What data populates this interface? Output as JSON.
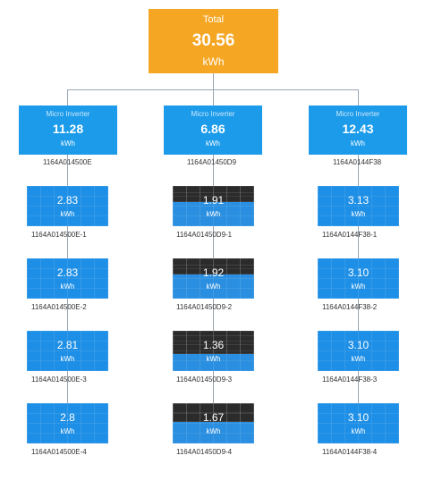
{
  "total": {
    "title": "Total",
    "value": "30.56",
    "unit": "kWh"
  },
  "inverters": [
    {
      "label": "Micro Inverter",
      "value": "11.28",
      "unit": "kWh",
      "serial": "1164A014500E",
      "panels": [
        {
          "value": "2.83",
          "unit": "kWh",
          "serial": "1164A014500E-1",
          "fill": 1.0
        },
        {
          "value": "2.83",
          "unit": "kWh",
          "serial": "1164A014500E-2",
          "fill": 1.0
        },
        {
          "value": "2.81",
          "unit": "kWh",
          "serial": "1164A014500E-3",
          "fill": 1.0
        },
        {
          "value": "2.8",
          "unit": "kWh",
          "serial": "1164A014500E-4",
          "fill": 1.0
        }
      ]
    },
    {
      "label": "Micro Inverter",
      "value": "6.86",
      "unit": "kWh",
      "serial": "1164A01450D9",
      "panels": [
        {
          "value": "1.91",
          "unit": "kWh",
          "serial": "1164A01450D9-1",
          "fill": 0.61
        },
        {
          "value": "1.92",
          "unit": "kWh",
          "serial": "1164A01450D9-2",
          "fill": 0.61
        },
        {
          "value": "1.36",
          "unit": "kWh",
          "serial": "1164A01450D9-3",
          "fill": 0.43
        },
        {
          "value": "1.67",
          "unit": "kWh",
          "serial": "1164A01450D9-4",
          "fill": 0.53
        }
      ]
    },
    {
      "label": "Micro Inverter",
      "value": "12.43",
      "unit": "kWh",
      "serial": "1164A0144F38",
      "panels": [
        {
          "value": "3.13",
          "unit": "kWh",
          "serial": "1164A0144F38-1",
          "fill": 1.0
        },
        {
          "value": "3.10",
          "unit": "kWh",
          "serial": "1164A0144F38-2",
          "fill": 1.0
        },
        {
          "value": "3.10",
          "unit": "kWh",
          "serial": "1164A0144F38-3",
          "fill": 1.0
        },
        {
          "value": "3.10",
          "unit": "kWh",
          "serial": "1164A0144F38-4",
          "fill": 1.0
        }
      ]
    }
  ],
  "colors": {
    "total": "#f5a623",
    "inverter": "#1b9bea",
    "panel_full": "#1e8fe6",
    "panel_partial": "#2a8fe0",
    "panel_dark": "#2b2b2b",
    "connector": "#9aa6b2",
    "serial_text": "#333333"
  }
}
